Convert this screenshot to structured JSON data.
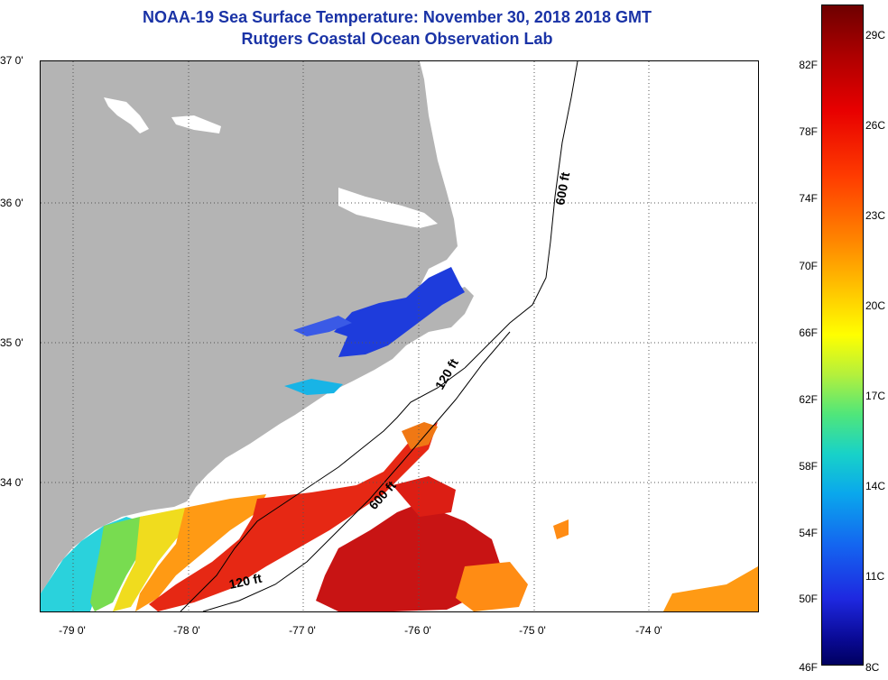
{
  "title": {
    "line1": "NOAA-19 Sea Surface Temperature:  November 30, 2018 2018 GMT",
    "line2": "Rutgers Coastal Ocean Observation Lab"
  },
  "lat_labels": [
    "37 0'",
    "36 0'",
    "35 0'",
    "34 0'"
  ],
  "lon_labels": [
    "-79 0'",
    "-78 0'",
    "-77 0'",
    "-76 0'",
    "-75 0'",
    "-74 0'"
  ],
  "contour_labels": {
    "c600_north": "600 ft",
    "c120_mid": "120 ft",
    "c600_mid": "600 ft",
    "c120_south": "120 ft"
  },
  "colorbar": {
    "fahrenheit": [
      "82F",
      "78F",
      "74F",
      "70F",
      "66F",
      "62F",
      "58F",
      "54F",
      "50F",
      "46F"
    ],
    "celsius": [
      "29C",
      "26C",
      "23C",
      "20C",
      "17C",
      "14C",
      "11C",
      "8C"
    ]
  },
  "colors": {
    "title": "#1a33a6",
    "land": "#b4b4b4",
    "cold_sound": "#1e3cdc",
    "warm_gulfstream": "#d21414"
  }
}
